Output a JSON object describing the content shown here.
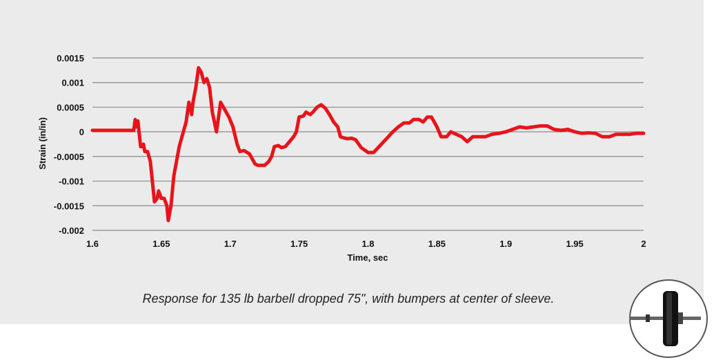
{
  "caption": "Response for 135 lb barbell dropped 75\", with bumpers at center of sleeve.",
  "chart_data": {
    "type": "line",
    "title": "",
    "xlabel": "Time, sec",
    "ylabel": "Strain (in/in)",
    "xlim": [
      1.6,
      2.0
    ],
    "ylim": [
      -0.002,
      0.0015
    ],
    "x_ticks": [
      1.6,
      1.65,
      1.7,
      1.75,
      1.8,
      1.85,
      1.9,
      1.95,
      2.0
    ],
    "x_tick_labels": [
      "1.6",
      "1.65",
      "1.7",
      "1.75",
      "1.8",
      "1.85",
      "1.9",
      "1.95",
      "2"
    ],
    "y_ticks": [
      0.0015,
      0.001,
      0.0005,
      0,
      -0.0005,
      -0.001,
      -0.0015,
      -0.002
    ],
    "y_tick_labels": [
      "0.0015",
      "0.001",
      "0.0005",
      "0",
      "-0.0005",
      "-0.001",
      "-0.0015",
      "-0.002"
    ],
    "grid": "horizontal",
    "line_color": "#e8141b",
    "series": [
      {
        "values": [
          [
            1.6,
            3e-05
          ],
          [
            1.63,
            3e-05
          ],
          [
            1.631,
            0.00025
          ],
          [
            1.632,
            0.0001
          ],
          [
            1.633,
            0.00022
          ],
          [
            1.634,
            -5e-05
          ],
          [
            1.635,
            -0.0003
          ],
          [
            1.636,
            -0.0003
          ],
          [
            1.637,
            -0.00025
          ],
          [
            1.638,
            -0.0004
          ],
          [
            1.64,
            -0.0004
          ],
          [
            1.642,
            -0.0006
          ],
          [
            1.645,
            -0.00142
          ],
          [
            1.647,
            -0.00135
          ],
          [
            1.648,
            -0.0012
          ],
          [
            1.65,
            -0.00135
          ],
          [
            1.652,
            -0.00135
          ],
          [
            1.654,
            -0.0015
          ],
          [
            1.655,
            -0.0018
          ],
          [
            1.657,
            -0.0015
          ],
          [
            1.659,
            -0.0009
          ],
          [
            1.663,
            -0.0003
          ],
          [
            1.666,
            0.0
          ],
          [
            1.668,
            0.0002
          ],
          [
            1.67,
            0.0006
          ],
          [
            1.672,
            0.00035
          ],
          [
            1.673,
            0.0006
          ],
          [
            1.675,
            0.0009
          ],
          [
            1.677,
            0.0013
          ],
          [
            1.679,
            0.0012
          ],
          [
            1.681,
            0.001
          ],
          [
            1.683,
            0.00108
          ],
          [
            1.685,
            0.0009
          ],
          [
            1.687,
            0.0004
          ],
          [
            1.69,
            0.0
          ],
          [
            1.693,
            0.0006
          ],
          [
            1.696,
            0.00045
          ],
          [
            1.699,
            0.0003
          ],
          [
            1.702,
            0.0001
          ],
          [
            1.705,
            -0.00025
          ],
          [
            1.707,
            -0.0004
          ],
          [
            1.71,
            -0.00038
          ],
          [
            1.714,
            -0.00045
          ],
          [
            1.718,
            -0.00065
          ],
          [
            1.72,
            -0.00068
          ],
          [
            1.723,
            -0.00068
          ],
          [
            1.725,
            -0.00068
          ],
          [
            1.728,
            -0.0006
          ],
          [
            1.73,
            -0.0005
          ],
          [
            1.732,
            -0.0003
          ],
          [
            1.735,
            -0.00028
          ],
          [
            1.737,
            -0.00032
          ],
          [
            1.74,
            -0.0003
          ],
          [
            1.743,
            -0.0002
          ],
          [
            1.746,
            -0.0001
          ],
          [
            1.748,
            0.0
          ],
          [
            1.75,
            0.0003
          ],
          [
            1.753,
            0.00032
          ],
          [
            1.755,
            0.0004
          ],
          [
            1.758,
            0.00035
          ],
          [
            1.76,
            0.0004
          ],
          [
            1.763,
            0.0005
          ],
          [
            1.766,
            0.00055
          ],
          [
            1.769,
            0.00048
          ],
          [
            1.772,
            0.00035
          ],
          [
            1.775,
            0.0002
          ],
          [
            1.778,
            0.0001
          ],
          [
            1.78,
            -0.0001
          ],
          [
            1.782,
            -0.00012
          ],
          [
            1.785,
            -0.00014
          ],
          [
            1.788,
            -0.00013
          ],
          [
            1.791,
            -0.00016
          ],
          [
            1.795,
            -0.00032
          ],
          [
            1.8,
            -0.00042
          ],
          [
            1.804,
            -0.00042
          ],
          [
            1.808,
            -0.0003
          ],
          [
            1.813,
            -0.00015
          ],
          [
            1.818,
            0.0
          ],
          [
            1.822,
            0.0001
          ],
          [
            1.826,
            0.00018
          ],
          [
            1.83,
            0.00018
          ],
          [
            1.833,
            0.00025
          ],
          [
            1.837,
            0.00025
          ],
          [
            1.84,
            0.0002
          ],
          [
            1.843,
            0.0003
          ],
          [
            1.846,
            0.0003
          ],
          [
            1.85,
            0.0001
          ],
          [
            1.853,
            -0.0001
          ],
          [
            1.857,
            -0.0001
          ],
          [
            1.86,
            0.0
          ],
          [
            1.864,
            -5e-05
          ],
          [
            1.868,
            -0.0001
          ],
          [
            1.872,
            -0.0002
          ],
          [
            1.876,
            -0.0001
          ],
          [
            1.88,
            -0.0001
          ],
          [
            1.885,
            -0.0001
          ],
          [
            1.89,
            -5e-05
          ],
          [
            1.895,
            -3e-05
          ],
          [
            1.9,
            0.0
          ],
          [
            1.905,
            5e-05
          ],
          [
            1.91,
            0.0001
          ],
          [
            1.915,
            8e-05
          ],
          [
            1.92,
            0.0001
          ],
          [
            1.925,
            0.00012
          ],
          [
            1.93,
            0.00012
          ],
          [
            1.935,
            5e-05
          ],
          [
            1.94,
            3e-05
          ],
          [
            1.945,
            5e-05
          ],
          [
            1.95,
            0.0
          ],
          [
            1.955,
            -3e-05
          ],
          [
            1.96,
            -2e-05
          ],
          [
            1.965,
            -3e-05
          ],
          [
            1.97,
            -0.0001
          ],
          [
            1.975,
            -0.0001
          ],
          [
            1.98,
            -5e-05
          ],
          [
            1.985,
            -5e-05
          ],
          [
            1.99,
            -5e-05
          ],
          [
            1.995,
            -3e-05
          ],
          [
            2.0,
            -3e-05
          ]
        ]
      }
    ]
  }
}
